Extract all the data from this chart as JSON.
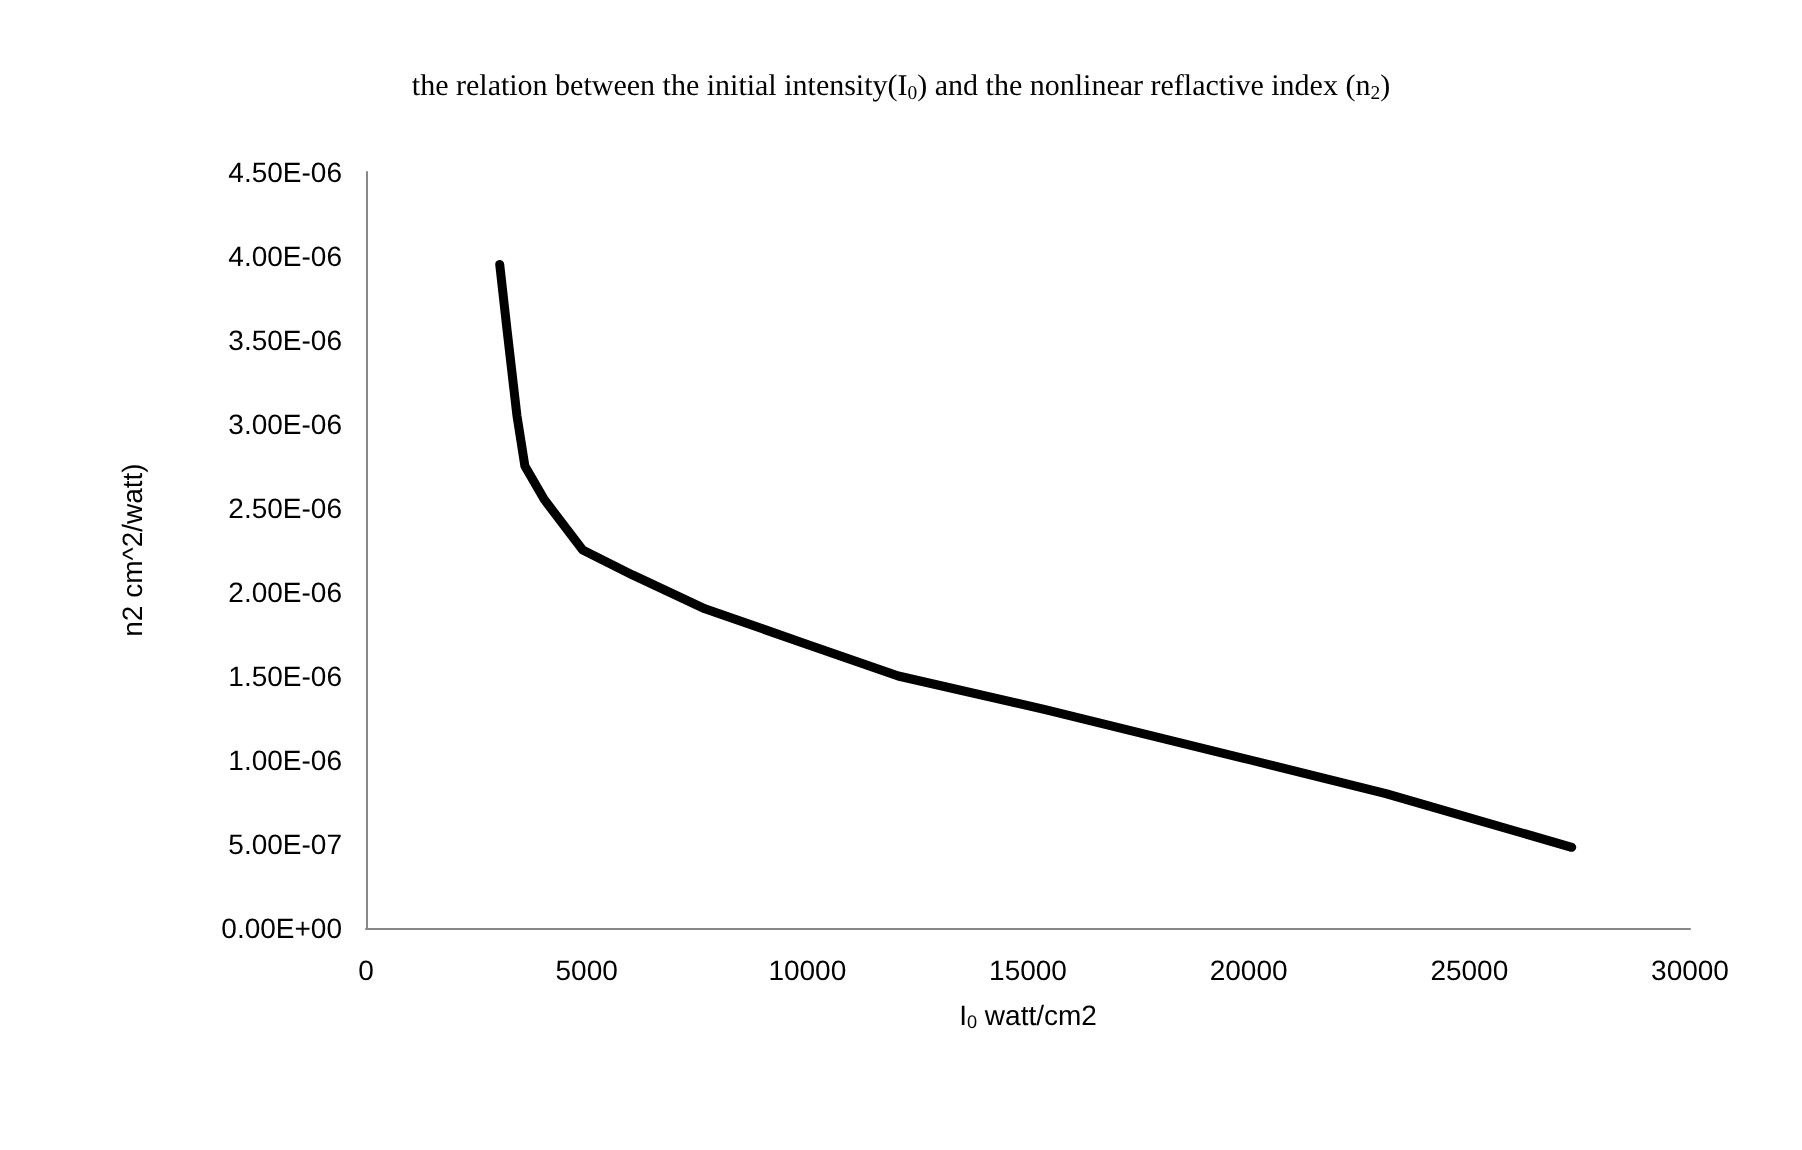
{
  "chart_data": {
    "type": "line",
    "title": "the relation between the initial intensity(I$_{0}$) and the nonlinear reflactive index (n$_{2}$)",
    "xlabel": "I$_{0}$ watt/cm2",
    "ylabel": "n2 cm^2/watt)",
    "x": [
      3030,
      3200,
      3420,
      3600,
      4040,
      4910,
      6050,
      7680,
      9870,
      12060,
      15390,
      20040,
      23110,
      27320
    ],
    "series": [
      {
        "color": "#000000",
        "values": [
          3.95e-06,
          3.55e-06,
          3.05e-06,
          2.75e-06,
          2.55e-06,
          2.25e-06,
          2.1e-06,
          1.9e-06,
          1.7e-06,
          1.5e-06,
          1.3e-06,
          1e-06,
          8e-07,
          4.8e-07
        ]
      }
    ],
    "xlim": [
      0,
      30000
    ],
    "xticks": [
      0,
      5000,
      10000,
      15000,
      20000,
      25000,
      30000
    ],
    "ylim": [
      0,
      4.5e-06
    ],
    "yticks": [
      {
        "value": 0,
        "label": "0.00E+00"
      },
      {
        "value": 5e-07,
        "label": "5.00E-07"
      },
      {
        "value": 1e-06,
        "label": "1.00E-06"
      },
      {
        "value": 1.5e-06,
        "label": "1.50E-06"
      },
      {
        "value": 2e-06,
        "label": "2.00E-06"
      },
      {
        "value": 2.5e-06,
        "label": "2.50E-06"
      },
      {
        "value": 3e-06,
        "label": "3.00E-06"
      },
      {
        "value": 3.5e-06,
        "label": "3.50E-06"
      },
      {
        "value": 4e-06,
        "label": "4.00E-06"
      },
      {
        "value": 4.5e-06,
        "label": "4.50E-06"
      }
    ],
    "grid": false,
    "marker": "none",
    "line_style": "solid"
  }
}
